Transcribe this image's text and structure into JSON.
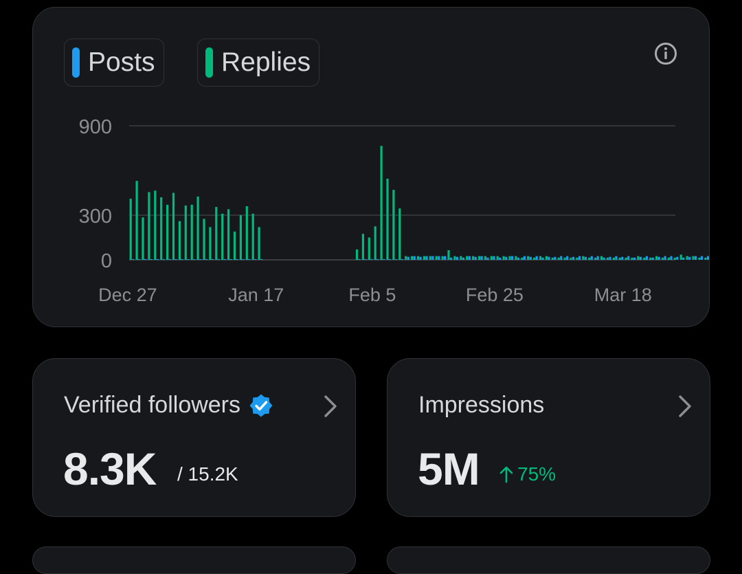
{
  "colors": {
    "posts": "#1d9bf0",
    "replies": "#00ba7c",
    "growth": "#00ba7c",
    "verified": "#1d9bf0"
  },
  "legend": {
    "posts_label": "Posts",
    "replies_label": "Replies"
  },
  "info_icon": "info-circle-icon",
  "chart_data": {
    "type": "bar",
    "title": "",
    "xlabel": "",
    "ylabel": "",
    "ylim": [
      0,
      900
    ],
    "yticks": [
      "900",
      "300",
      "0"
    ],
    "yticks_values": [
      900,
      300,
      0
    ],
    "x_labels": [
      "Dec 27",
      "Jan 17",
      "Feb 5",
      "Feb 25",
      "Mar 18"
    ],
    "x_label_days": [
      0,
      21,
      40,
      60,
      81
    ],
    "start_day": -1,
    "series": [
      {
        "name": "Replies",
        "values": [
          410,
          530,
          285,
          455,
          465,
          420,
          370,
          450,
          260,
          365,
          370,
          425,
          275,
          220,
          355,
          310,
          340,
          190,
          300,
          360,
          310,
          220,
          0,
          0,
          0,
          0,
          0,
          0,
          0,
          0,
          0,
          0,
          0,
          0,
          0,
          0,
          0,
          70,
          175,
          150,
          225,
          765,
          545,
          470,
          345,
          25,
          25,
          25,
          25,
          25,
          25,
          25,
          65,
          25,
          25,
          25,
          25,
          25,
          25,
          25,
          25,
          25,
          25,
          25,
          15,
          25,
          15,
          25,
          25,
          15,
          15,
          15,
          15,
          15,
          25,
          15,
          15,
          25,
          15,
          15,
          15,
          15,
          15,
          25,
          15,
          15,
          25,
          15,
          15,
          15,
          35,
          25,
          25,
          15,
          15,
          25,
          15,
          40,
          25,
          25,
          15,
          15,
          15,
          15,
          15,
          15,
          15,
          15,
          40,
          25,
          15,
          35,
          15,
          15,
          50,
          15,
          60,
          15,
          15,
          15,
          15,
          15,
          15,
          15,
          15,
          15,
          15,
          15,
          15,
          15,
          40,
          25,
          35,
          15
        ]
      },
      {
        "name": "Posts",
        "values": [
          5,
          5,
          5,
          5,
          5,
          5,
          5,
          5,
          5,
          5,
          5,
          5,
          5,
          5,
          5,
          5,
          5,
          5,
          5,
          5,
          5,
          5,
          0,
          0,
          0,
          0,
          0,
          0,
          0,
          0,
          0,
          0,
          0,
          0,
          0,
          0,
          0,
          5,
          5,
          5,
          5,
          5,
          5,
          5,
          5,
          20,
          25,
          20,
          25,
          25,
          25,
          25,
          15,
          20,
          15,
          25,
          20,
          25,
          15,
          25,
          15,
          20,
          25,
          15,
          25,
          20,
          25,
          15,
          20,
          20,
          25,
          25,
          20,
          25,
          20,
          25,
          25,
          15,
          20,
          25,
          20,
          25,
          15,
          20,
          25,
          15,
          20,
          25,
          25,
          20,
          15,
          20,
          25,
          25,
          25,
          20,
          15,
          20,
          25,
          15,
          20,
          15,
          20,
          15,
          15,
          20,
          15,
          15,
          15,
          15,
          15,
          20,
          15,
          15,
          15,
          15,
          15,
          15,
          15,
          15,
          15,
          10,
          10,
          10,
          10,
          10,
          10,
          10,
          10,
          10,
          10,
          10,
          10,
          10,
          10,
          10,
          10,
          10,
          10,
          10
        ]
      }
    ]
  },
  "followers": {
    "title": "Verified followers",
    "value": "8.3K",
    "total": "/ 15.2K",
    "badge_icon": "verified-badge-icon"
  },
  "impressions": {
    "title": "Impressions",
    "value": "5M",
    "change": "75%",
    "change_icon": "arrow-up-icon"
  }
}
